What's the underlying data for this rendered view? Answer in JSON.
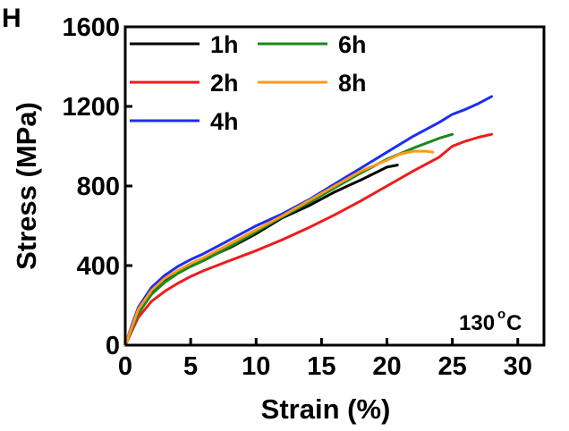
{
  "panel_label": "H",
  "chart_data": {
    "type": "line",
    "xlabel": "Strain (%)",
    "ylabel": "Stress (MPa)",
    "xlim": [
      0,
      32
    ],
    "ylim": [
      0,
      1600
    ],
    "x_ticks": [
      0,
      5,
      10,
      15,
      20,
      25,
      30
    ],
    "y_ticks": [
      0,
      400,
      800,
      1200,
      1600
    ],
    "grid": false,
    "legend_position": "top-left",
    "annotation": {
      "text": "130",
      "sup": "o",
      "unit": "C"
    },
    "series": [
      {
        "name": "1h",
        "color": "#000000",
        "x": [
          0,
          0.5,
          1,
          2,
          3,
          4,
          5,
          6,
          8,
          10,
          12,
          14,
          16,
          18,
          20,
          20.8
        ],
        "y": [
          0,
          90,
          170,
          260,
          320,
          365,
          400,
          430,
          490,
          560,
          640,
          700,
          770,
          830,
          895,
          905
        ]
      },
      {
        "name": "2h",
        "color": "#ee1c1c",
        "x": [
          0,
          0.5,
          1,
          2,
          3,
          4,
          5,
          6,
          8,
          10,
          12,
          14,
          16,
          18,
          20,
          22,
          24,
          25,
          26,
          27,
          28
        ],
        "y": [
          0,
          70,
          140,
          220,
          270,
          310,
          345,
          375,
          425,
          475,
          530,
          590,
          655,
          725,
          800,
          875,
          945,
          1000,
          1025,
          1045,
          1060
        ]
      },
      {
        "name": "4h",
        "color": "#1c2ef0",
        "x": [
          0,
          0.5,
          1,
          2,
          3,
          4,
          5,
          6,
          8,
          10,
          12,
          14,
          16,
          18,
          20,
          22,
          24,
          25,
          26,
          27,
          28
        ],
        "y": [
          0,
          100,
          190,
          290,
          350,
          395,
          430,
          460,
          530,
          600,
          660,
          730,
          810,
          890,
          970,
          1050,
          1120,
          1160,
          1185,
          1215,
          1250
        ]
      },
      {
        "name": "6h",
        "color": "#1a8a1a",
        "x": [
          0,
          0.5,
          1,
          2,
          3,
          4,
          5,
          6,
          8,
          10,
          12,
          14,
          16,
          18,
          20,
          22,
          24,
          25
        ],
        "y": [
          0,
          80,
          160,
          255,
          315,
          360,
          395,
          425,
          495,
          570,
          645,
          715,
          790,
          865,
          935,
          990,
          1040,
          1060
        ]
      },
      {
        "name": "8h",
        "color": "#ff9a1a",
        "x": [
          0,
          0.5,
          1,
          2,
          3,
          4,
          5,
          6,
          8,
          10,
          12,
          14,
          16,
          18,
          20,
          21,
          22,
          23,
          23.5
        ],
        "y": [
          0,
          90,
          180,
          275,
          335,
          375,
          410,
          440,
          510,
          580,
          650,
          725,
          800,
          875,
          930,
          960,
          975,
          975,
          970
        ]
      }
    ]
  }
}
